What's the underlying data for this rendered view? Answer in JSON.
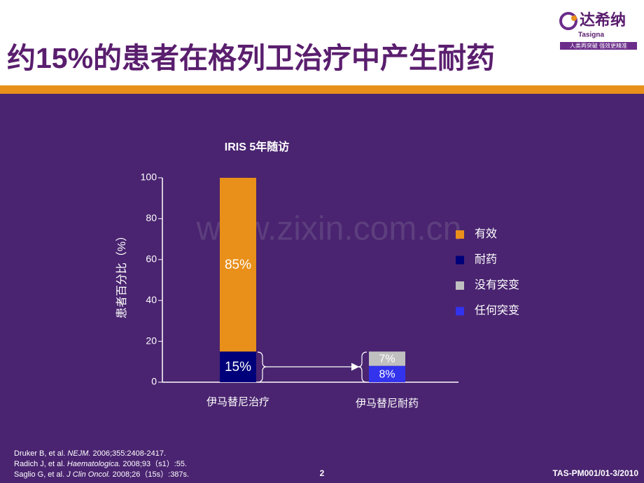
{
  "header": {
    "title": "约15%的患者在格列卫治疗中产生耐药",
    "logo_name": "达希纳",
    "logo_brand": "Tasigna",
    "logo_slogan": "人类再突破  强效更精准"
  },
  "watermark": "www.zixin.com.cn",
  "chart_data": {
    "type": "stacked-bar",
    "title": "IRIS 5年随访",
    "y_label": "患者百分比（%）",
    "categories": [
      "伊马替尼治疗",
      "伊马替尼耐药"
    ],
    "series": [
      {
        "name": "有效",
        "color": "#e8901a",
        "values": [
          85,
          null
        ],
        "value_labels": [
          "85%",
          null
        ]
      },
      {
        "name": "耐药",
        "color": "#00007a",
        "values": [
          15,
          null
        ],
        "value_labels": [
          "15%",
          null
        ]
      },
      {
        "name": "没有突变",
        "color": "#c0c0c0",
        "values": [
          null,
          7
        ],
        "value_labels": [
          null,
          "7%"
        ]
      },
      {
        "name": "任何突变",
        "color": "#3333ee",
        "values": [
          null,
          8
        ],
        "value_labels": [
          null,
          "8%"
        ]
      }
    ],
    "stack_order": [
      1,
      0,
      3,
      2
    ],
    "ylim": [
      0,
      100
    ],
    "yticks": [
      0,
      20,
      40,
      60,
      80,
      100
    ]
  },
  "references": [
    {
      "pre": "Druker B, et al. ",
      "journal": "NEJM.",
      "post": " 2006;355:2408-2417."
    },
    {
      "pre": "Radich J, et al. ",
      "journal": "Haematologica.",
      "post": " 2008;93（s1）:55."
    },
    {
      "pre": "Saglio G, et al. ",
      "journal": "J Clin Oncol.",
      "post": " 2008;26（15s）:387s."
    }
  ],
  "footer": {
    "page": "2",
    "code": "TAS-PM001/01-3/2010"
  }
}
